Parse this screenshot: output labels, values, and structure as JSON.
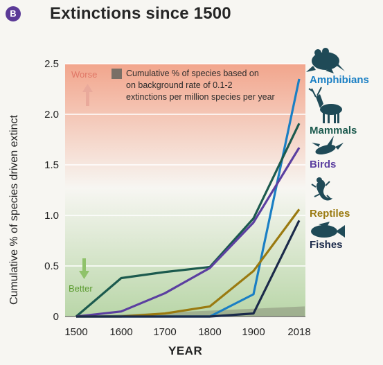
{
  "badge": "B",
  "title": "Extinctions since 1500",
  "chart_data": {
    "type": "line",
    "title": "Extinctions since 1500",
    "xlabel": "YEAR",
    "ylabel": "Cumulative % of species driven extinct",
    "x": [
      1500,
      1600,
      1700,
      1800,
      1900,
      2018
    ],
    "x_tick_labels": [
      "1500",
      "1600",
      "1700",
      "1800",
      "1900",
      "2018"
    ],
    "ylim": [
      0,
      2.5
    ],
    "y_ticks": [
      "0",
      "0.5",
      "1.0",
      "1.5",
      "2.0",
      "2.5"
    ],
    "series": [
      {
        "name": "Amphibians",
        "color": "#1a7fc4",
        "values": [
          0,
          0,
          0,
          0,
          0.22,
          2.35
        ]
      },
      {
        "name": "Mammals",
        "color": "#1c5a4e",
        "values": [
          0,
          0.38,
          0.44,
          0.49,
          0.97,
          1.91
        ]
      },
      {
        "name": "Birds",
        "color": "#5b3fa0",
        "values": [
          0,
          0.05,
          0.23,
          0.48,
          0.93,
          1.67
        ]
      },
      {
        "name": "Reptiles",
        "color": "#9a7a10",
        "values": [
          0,
          0,
          0.03,
          0.1,
          0.45,
          1.06
        ]
      },
      {
        "name": "Fishes",
        "color": "#1b2a4a",
        "values": [
          0,
          0,
          0,
          0,
          0.03,
          0.95
        ]
      }
    ],
    "background_rate_note": "Cumulative % of species based on on background rate of 0.1-2 extinctions per million species per year",
    "background_rate_max": 0.1,
    "annotations": {
      "worse": "Worse",
      "better": "Better"
    }
  }
}
